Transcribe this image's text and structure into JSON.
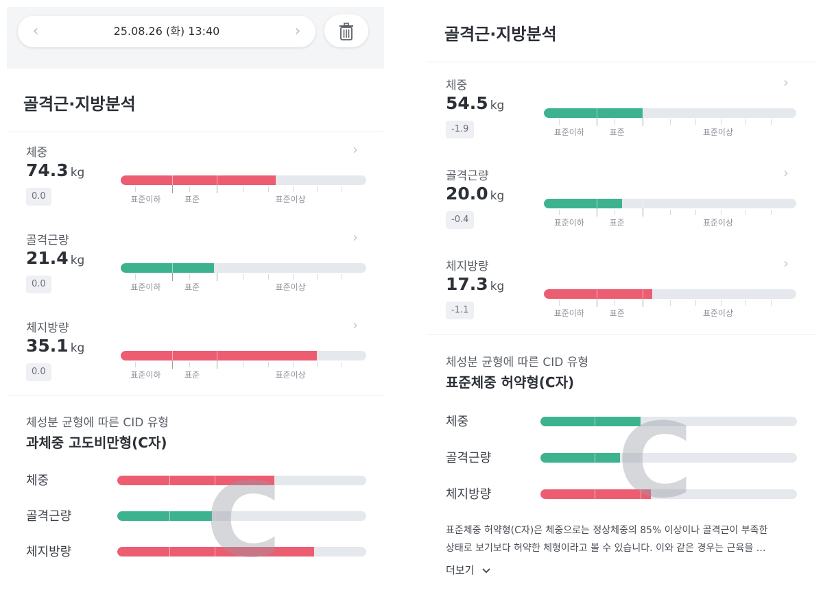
{
  "colors": {
    "red": "#ec5d72",
    "green": "#3db28f",
    "track": "#e5e8ec"
  },
  "left_panel": {
    "date_text": "25.08.26 (화) 13:40",
    "prev_icon": "chevron-left-icon",
    "next_icon": "chevron-right-icon",
    "trash_icon": "trash-icon",
    "section_title": "골격근·지방분석",
    "metrics": [
      {
        "label": "체중",
        "value": "74.3",
        "unit": "kg",
        "delta": "0.0",
        "fill": 0.63,
        "color": "red"
      },
      {
        "label": "골격근량",
        "value": "21.4",
        "unit": "kg",
        "delta": "0.0",
        "fill": 0.38,
        "color": "green"
      },
      {
        "label": "체지방량",
        "value": "35.1",
        "unit": "kg",
        "delta": "0.0",
        "fill": 0.8,
        "color": "red"
      }
    ],
    "scale_labels": [
      "표준이하",
      "표준",
      "표준이상"
    ],
    "cid": {
      "subtitle": "체성분 균형에 따른 CID 유형",
      "type": "과체중 고도비만형(C자)",
      "letter": "C",
      "rows": [
        {
          "label": "체중",
          "fill": 0.63,
          "color": "red"
        },
        {
          "label": "골격근량",
          "fill": 0.38,
          "color": "green"
        },
        {
          "label": "체지방량",
          "fill": 0.79,
          "color": "red"
        }
      ]
    }
  },
  "right_panel": {
    "section_title": "골격근·지방분석",
    "metrics": [
      {
        "label": "체중",
        "value": "54.5",
        "unit": "kg",
        "delta": "-1.9",
        "fill": 0.39,
        "color": "green"
      },
      {
        "label": "골격근량",
        "value": "20.0",
        "unit": "kg",
        "delta": "-0.4",
        "fill": 0.31,
        "color": "green"
      },
      {
        "label": "체지방량",
        "value": "17.3",
        "unit": "kg",
        "delta": "-1.1",
        "fill": 0.43,
        "color": "red"
      }
    ],
    "scale_labels": [
      "표준이하",
      "표준",
      "표준이상"
    ],
    "cid": {
      "subtitle": "체성분 균형에 따른 CID 유형",
      "type": "표준체중 허약형(C자)",
      "letter": "C",
      "rows": [
        {
          "label": "체중",
          "fill": 0.39,
          "color": "green"
        },
        {
          "label": "골격근량",
          "fill": 0.31,
          "color": "green"
        },
        {
          "label": "체지방량",
          "fill": 0.43,
          "color": "red"
        }
      ]
    },
    "description_line1": "표준체중 허약형(C자)은 체중으로는 정상체중의 85% 이상이나 골격근이 부족한",
    "description_line2": "상태로 보기보다 허약한 체형이라고 볼 수 있습니다. 이와 같은 경우는 근육을 …",
    "more_label": "더보기",
    "more_icon": "chevron-down-icon"
  }
}
